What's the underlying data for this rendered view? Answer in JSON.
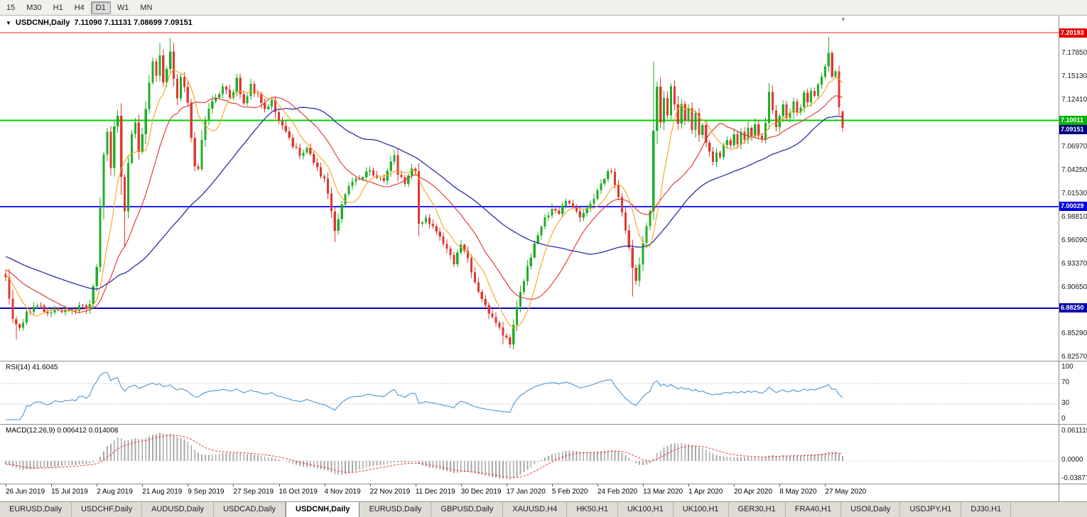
{
  "toolbar": {
    "timeframes": [
      {
        "label": "15",
        "selected": false
      },
      {
        "label": "M30",
        "selected": false
      },
      {
        "label": "H1",
        "selected": false
      },
      {
        "label": "H4",
        "selected": false
      },
      {
        "label": "D1",
        "selected": true
      },
      {
        "label": "W1",
        "selected": false
      },
      {
        "label": "MN",
        "selected": false
      }
    ]
  },
  "chart": {
    "symbol_title": "USDCNH,Daily",
    "ohlc_text": "7.11090 7.11131 7.08699 7.09151",
    "last_candle": {
      "o": 7.1109,
      "h": 7.11131,
      "l": 7.08699,
      "c": 7.09151
    },
    "num_candles": 240,
    "candles_per_label": 13,
    "price_min": 6.8215,
    "price_max": 7.2217,
    "colors": {
      "up": "#1FAE26",
      "down": "#DC3A33",
      "ma_fast": "#F7A21B",
      "ma_mid": "#E03030",
      "ma_slow": "#2A2FA8"
    },
    "hlines": [
      {
        "value": 7.20193,
        "label": "7.20193",
        "color": "#FF1E1E",
        "label_bg": "#E60000",
        "width": 1
      },
      {
        "value": 7.10011,
        "label": "7.10011",
        "color": "#00D000",
        "label_bg": "#00B400",
        "width": 2
      },
      {
        "value": 7.00029,
        "label": "7.00029",
        "color": "#2020FF",
        "label_bg": "#0000E0",
        "width": 2
      },
      {
        "value": 6.8825,
        "label": "6.88250",
        "color": "#0000C0",
        "label_bg": "#0000A8",
        "width": 2
      }
    ],
    "bid": {
      "v": 7.09151,
      "t": "7.09151",
      "bg": "#000080"
    },
    "price_axis": [
      {
        "v": 7.1785,
        "t": "7.17850"
      },
      {
        "v": 7.1513,
        "t": "7.15130"
      },
      {
        "v": 7.1241,
        "t": "7.12410"
      },
      {
        "v": 7.0697,
        "t": "7.06970"
      },
      {
        "v": 7.0425,
        "t": "7.04250"
      },
      {
        "v": 7.0153,
        "t": "7.01530"
      },
      {
        "v": 6.9881,
        "t": "6.98810"
      },
      {
        "v": 6.9609,
        "t": "6.96090"
      },
      {
        "v": 6.9337,
        "t": "6.93370"
      },
      {
        "v": 6.9065,
        "t": "6.90650"
      },
      {
        "v": 6.8529,
        "t": "6.85290"
      },
      {
        "v": 6.8257,
        "t": "6.82570"
      }
    ],
    "dates": [
      "26 Jun 2019",
      "15 Jul 2019",
      "2 Aug 2019",
      "21 Aug 2019",
      "9 Sep 2019",
      "27 Sep 2019",
      "16 Oct 2019",
      "4 Nov 2019",
      "22 Nov 2019",
      "11 Dec 2019",
      "30 Dec 2019",
      "17 Jan 2020",
      "5 Feb 2020",
      "24 Feb 2020",
      "13 Mar 2020",
      "1 Apr 2020",
      "20 Apr 2020",
      "8 May 2020",
      "27 May 2020"
    ],
    "waypoints": [
      [
        0,
        6.916
      ],
      [
        2,
        6.872
      ],
      [
        4,
        6.857
      ],
      [
        6,
        6.879
      ],
      [
        9,
        6.886
      ],
      [
        12,
        6.877
      ],
      [
        15,
        6.882
      ],
      [
        18,
        6.877
      ],
      [
        21,
        6.883
      ],
      [
        24,
        6.885
      ],
      [
        26,
        6.928
      ],
      [
        27,
        6.996
      ],
      [
        28,
        7.058
      ],
      [
        29,
        7.089
      ],
      [
        30,
        7.046
      ],
      [
        31,
        7.092
      ],
      [
        32,
        7.106
      ],
      [
        33,
        7.036
      ],
      [
        34,
        6.994
      ],
      [
        35,
        7.048
      ],
      [
        36,
        7.083
      ],
      [
        37,
        7.096
      ],
      [
        38,
        7.062
      ],
      [
        39,
        7.086
      ],
      [
        40,
        7.112
      ],
      [
        41,
        7.146
      ],
      [
        42,
        7.168
      ],
      [
        43,
        7.152
      ],
      [
        44,
        7.178
      ],
      [
        45,
        7.142
      ],
      [
        46,
        7.162
      ],
      [
        47,
        7.183
      ],
      [
        48,
        7.15
      ],
      [
        49,
        7.126
      ],
      [
        50,
        7.152
      ],
      [
        51,
        7.138
      ],
      [
        52,
        7.118
      ],
      [
        53,
        7.082
      ],
      [
        54,
        7.05
      ],
      [
        55,
        7.046
      ],
      [
        56,
        7.076
      ],
      [
        57,
        7.102
      ],
      [
        58,
        7.116
      ],
      [
        60,
        7.124
      ],
      [
        62,
        7.138
      ],
      [
        64,
        7.128
      ],
      [
        65,
        7.136
      ],
      [
        66,
        7.148
      ],
      [
        68,
        7.118
      ],
      [
        70,
        7.14
      ],
      [
        72,
        7.128
      ],
      [
        74,
        7.112
      ],
      [
        76,
        7.124
      ],
      [
        78,
        7.098
      ],
      [
        80,
        7.088
      ],
      [
        82,
        7.072
      ],
      [
        84,
        7.06
      ],
      [
        86,
        7.068
      ],
      [
        88,
        7.052
      ],
      [
        90,
        7.038
      ],
      [
        91,
        7.03
      ],
      [
        93,
        6.996
      ],
      [
        94,
        6.974
      ],
      [
        96,
        7.002
      ],
      [
        98,
        7.024
      ],
      [
        100,
        7.032
      ],
      [
        102,
        7.036
      ],
      [
        104,
        7.04
      ],
      [
        106,
        7.034
      ],
      [
        108,
        7.03
      ],
      [
        110,
        7.05
      ],
      [
        111,
        7.058
      ],
      [
        112,
        7.04
      ],
      [
        114,
        7.028
      ],
      [
        116,
        7.044
      ],
      [
        117,
        7.04
      ],
      [
        118,
        6.978
      ],
      [
        120,
        6.99
      ],
      [
        122,
        6.976
      ],
      [
        124,
        6.964
      ],
      [
        126,
        6.952
      ],
      [
        128,
        6.936
      ],
      [
        130,
        6.958
      ],
      [
        132,
        6.94
      ],
      [
        134,
        6.914
      ],
      [
        136,
        6.894
      ],
      [
        138,
        6.879
      ],
      [
        140,
        6.865
      ],
      [
        142,
        6.851
      ],
      [
        144,
        6.843
      ],
      [
        145,
        6.862
      ],
      [
        146,
        6.886
      ],
      [
        148,
        6.916
      ],
      [
        150,
        6.944
      ],
      [
        152,
        6.966
      ],
      [
        154,
        6.986
      ],
      [
        156,
        6.998
      ],
      [
        158,
        6.992
      ],
      [
        160,
        7.008
      ],
      [
        162,
        6.998
      ],
      [
        164,
        6.988
      ],
      [
        166,
        6.996
      ],
      [
        168,
        7.012
      ],
      [
        169,
        7.018
      ],
      [
        171,
        7.034
      ],
      [
        173,
        7.043
      ],
      [
        175,
        7.01
      ],
      [
        177,
        6.972
      ],
      [
        179,
        6.93
      ],
      [
        180,
        6.912
      ],
      [
        181,
        6.932
      ],
      [
        182,
        6.958
      ],
      [
        184,
        6.996
      ],
      [
        185,
        7.088
      ],
      [
        186,
        7.14
      ],
      [
        187,
        7.098
      ],
      [
        188,
        7.128
      ],
      [
        189,
        7.106
      ],
      [
        190,
        7.142
      ],
      [
        191,
        7.12
      ],
      [
        192,
        7.098
      ],
      [
        193,
        7.118
      ],
      [
        194,
        7.102
      ],
      [
        195,
        7.112
      ],
      [
        196,
        7.09
      ],
      [
        197,
        7.108
      ],
      [
        198,
        7.086
      ],
      [
        199,
        7.096
      ],
      [
        200,
        7.076
      ],
      [
        201,
        7.062
      ],
      [
        202,
        7.052
      ],
      [
        203,
        7.064
      ],
      [
        204,
        7.056
      ],
      [
        205,
        7.07
      ],
      [
        206,
        7.08
      ],
      [
        207,
        7.072
      ],
      [
        208,
        7.082
      ],
      [
        209,
        7.07
      ],
      [
        210,
        7.086
      ],
      [
        211,
        7.076
      ],
      [
        212,
        7.09
      ],
      [
        213,
        7.082
      ],
      [
        214,
        7.094
      ],
      [
        215,
        7.084
      ],
      [
        216,
        7.078
      ],
      [
        217,
        7.1
      ],
      [
        218,
        7.134
      ],
      [
        219,
        7.11
      ],
      [
        220,
        7.094
      ],
      [
        221,
        7.104
      ],
      [
        222,
        7.116
      ],
      [
        223,
        7.1
      ],
      [
        224,
        7.112
      ],
      [
        225,
        7.124
      ],
      [
        226,
        7.108
      ],
      [
        227,
        7.118
      ],
      [
        228,
        7.13
      ],
      [
        229,
        7.124
      ],
      [
        230,
        7.136
      ],
      [
        231,
        7.13
      ],
      [
        232,
        7.144
      ],
      [
        233,
        7.15
      ],
      [
        234,
        7.163
      ],
      [
        235,
        7.176
      ],
      [
        236,
        7.152
      ],
      [
        237,
        7.156
      ],
      [
        238,
        7.118
      ],
      [
        239,
        7.0915
      ]
    ],
    "wick_highs": [
      [
        44,
        7.19
      ],
      [
        47,
        7.1955
      ],
      [
        111,
        7.066
      ],
      [
        185,
        7.168
      ],
      [
        218,
        7.142
      ],
      [
        235,
        7.197
      ]
    ],
    "wick_lows": [
      [
        3,
        6.846
      ],
      [
        34,
        6.953
      ],
      [
        94,
        6.959
      ],
      [
        118,
        6.9655
      ],
      [
        142,
        6.8405
      ],
      [
        144,
        6.8365
      ],
      [
        179,
        6.896
      ]
    ]
  },
  "rsi": {
    "label": "RSI(14) 41.6045",
    "color": "#4E96D1",
    "levels": [
      {
        "v": 70
      },
      {
        "v": 30
      }
    ],
    "axis": [
      {
        "v": 100,
        "t": "100"
      },
      {
        "v": 70,
        "t": "70"
      },
      {
        "v": 30,
        "t": "30"
      },
      {
        "v": 0,
        "t": "0"
      }
    ]
  },
  "macd": {
    "label": "MACD(12,26,9) 0.006412 0.014008",
    "hist_color": "#A8A8A8",
    "signal_color": "#E33A3A",
    "axis": [
      {
        "v": 0.061115,
        "t": "0.061115"
      },
      {
        "v": 0,
        "t": "0.0000"
      },
      {
        "v": -0.03877,
        "t": "-0.03877"
      }
    ]
  },
  "tabs": {
    "items": [
      {
        "label": "EURUSD,Daily",
        "active": false
      },
      {
        "label": "USDCHF,Daily",
        "active": false
      },
      {
        "label": "AUDUSD,Daily",
        "active": false
      },
      {
        "label": "USDCAD,Daily",
        "active": false
      },
      {
        "label": "USDCNH,Daily",
        "active": true
      },
      {
        "label": "EURUSD,Daily",
        "active": false
      },
      {
        "label": "GBPUSD,Daily",
        "active": false
      },
      {
        "label": "XAUUSD,H4",
        "active": false
      },
      {
        "label": "HK50,H1",
        "active": false
      },
      {
        "label": "UK100,H1",
        "active": false
      },
      {
        "label": "UK100,H1",
        "active": false
      },
      {
        "label": "GER30,H1",
        "active": false
      },
      {
        "label": "FRA40,H1",
        "active": false
      },
      {
        "label": "USOil,Daily",
        "active": false
      },
      {
        "label": "USDJPY,H1",
        "active": false
      },
      {
        "label": "DJ30,H1",
        "active": false
      }
    ]
  }
}
